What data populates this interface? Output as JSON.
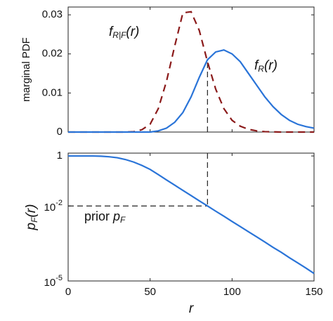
{
  "chart_data": [
    {
      "type": "line",
      "ylabel": "marginal PDF",
      "x": [
        0,
        5,
        10,
        15,
        20,
        25,
        30,
        35,
        40,
        45,
        50,
        55,
        60,
        65,
        70,
        75,
        80,
        85,
        90,
        95,
        100,
        105,
        110,
        115,
        120,
        125,
        130,
        135,
        140,
        145,
        150
      ],
      "xlim": [
        0,
        150
      ],
      "xticks": [
        0,
        50,
        100,
        150
      ],
      "xtick_labels": false,
      "ylim": [
        0,
        0.032
      ],
      "yticks": [
        0,
        0.01,
        0.02,
        0.03
      ],
      "series": [
        {
          "label": [
            "f",
            "R|F",
            "(r)"
          ],
          "color": "#8b1a1a",
          "linestyle": "dashed",
          "values": [
            0,
            0,
            0,
            0,
            0,
            0,
            0,
            0,
            0.0001,
            0.0006,
            0.002,
            0.006,
            0.013,
            0.022,
            0.0305,
            0.0308,
            0.026,
            0.018,
            0.011,
            0.006,
            0.003,
            0.0015,
            0.0007,
            0.0003,
            0.0001,
            5e-05,
            0,
            0,
            0,
            0,
            0
          ]
        },
        {
          "label": [
            "f",
            "R",
            "(r)"
          ],
          "color": "#2a74d8",
          "linestyle": "solid",
          "values": [
            0,
            0,
            0,
            0,
            0,
            0,
            0,
            0,
            0,
            0,
            0,
            0.0003,
            0.001,
            0.0025,
            0.005,
            0.009,
            0.014,
            0.0185,
            0.0205,
            0.021,
            0.02,
            0.018,
            0.015,
            0.012,
            0.009,
            0.0065,
            0.0045,
            0.003,
            0.002,
            0.0014,
            0.001
          ]
        }
      ],
      "guide": {
        "x": 85,
        "y": 0.0185
      }
    },
    {
      "type": "line",
      "log_y": true,
      "xlabel": "r",
      "ylabel": [
        "p",
        "F",
        "(r)"
      ],
      "x": [
        0,
        5,
        10,
        15,
        20,
        25,
        30,
        35,
        40,
        45,
        50,
        55,
        60,
        65,
        70,
        75,
        80,
        85,
        90,
        95,
        100,
        105,
        110,
        115,
        120,
        125,
        130,
        135,
        140,
        145,
        150
      ],
      "xlim": [
        0,
        150
      ],
      "xticks": [
        0,
        50,
        100,
        150
      ],
      "xtick_labels": true,
      "ylim": [
        1e-05,
        1.3
      ],
      "yticks": [
        1,
        {
          "value": 0.01,
          "label": "10",
          "exponent": "-2"
        },
        {
          "value": 1e-05,
          "label": "10",
          "exponent": "-5"
        }
      ],
      "series": [
        {
          "color": "#2a74d8",
          "linestyle": "solid",
          "values": [
            1,
            1,
            1,
            1,
            0.98,
            0.93,
            0.85,
            0.72,
            0.57,
            0.42,
            0.29,
            0.18,
            0.11,
            0.068,
            0.042,
            0.026,
            0.016,
            0.01,
            0.0062,
            0.0039,
            0.0024,
            0.0015,
            0.00093,
            0.00058,
            0.00036,
            0.00022,
            0.00014,
            8.5e-05,
            5.3e-05,
            3.3e-05,
            2e-05
          ]
        }
      ],
      "annotation": [
        "prior ",
        "p",
        "F"
      ],
      "guide": {
        "x": 85,
        "y": 0.01
      }
    }
  ]
}
